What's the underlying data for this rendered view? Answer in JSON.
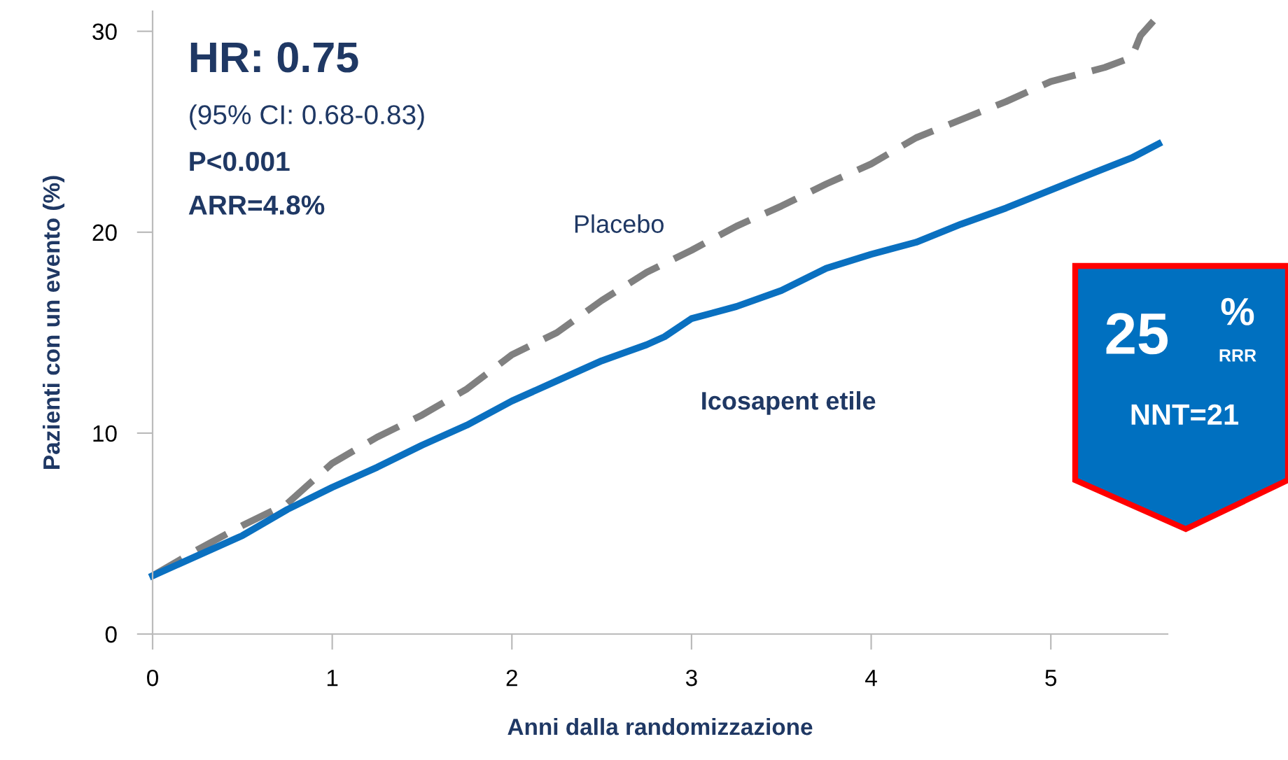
{
  "chart_data": {
    "type": "line",
    "xlabel": "Anni dalla randomizzazione",
    "ylabel": "Pazienti con un evento (%)",
    "xlim": [
      0,
      5.65
    ],
    "ylim": [
      0,
      31
    ],
    "xticks": [
      0,
      1,
      2,
      3,
      4,
      5
    ],
    "yticks": [
      0,
      10,
      20,
      30
    ],
    "grid": false,
    "legend": false,
    "series": [
      {
        "name": "Placebo",
        "color": "#808080",
        "line_style": "dashed",
        "x": [
          0,
          0.25,
          0.5,
          0.75,
          1,
          1.25,
          1.5,
          1.75,
          2,
          2.25,
          2.5,
          2.75,
          3,
          3.25,
          3.5,
          3.75,
          4,
          4.25,
          4.5,
          4.75,
          5,
          5.3,
          5.45,
          5.5,
          5.6
        ],
        "values": [
          2.9,
          4.2,
          5.4,
          6.5,
          8.5,
          9.8,
          10.9,
          12.2,
          13.9,
          15.0,
          16.6,
          18.0,
          19.1,
          20.3,
          21.3,
          22.4,
          23.4,
          24.7,
          25.6,
          26.5,
          27.5,
          28.2,
          28.7,
          29.8,
          30.8
        ]
      },
      {
        "name": "Icosapent etile",
        "color": "#0a70c0",
        "line_style": "solid",
        "x": [
          0,
          0.25,
          0.5,
          0.75,
          1,
          1.25,
          1.5,
          1.75,
          2,
          2.25,
          2.5,
          2.75,
          2.85,
          3,
          3.25,
          3.5,
          3.75,
          4,
          4.25,
          4.5,
          4.75,
          5,
          5.25,
          5.45,
          5.6
        ],
        "values": [
          2.9,
          3.9,
          4.9,
          6.2,
          7.3,
          8.3,
          9.4,
          10.4,
          11.6,
          12.6,
          13.6,
          14.4,
          14.8,
          15.7,
          16.3,
          17.1,
          18.2,
          18.9,
          19.5,
          20.4,
          21.2,
          22.1,
          23.0,
          23.7,
          24.4
        ]
      }
    ],
    "annotations": [
      "HR: 0.75",
      "(95% CI: 0.68-0.83)",
      "P<0.001",
      "ARR=4.8%",
      "25",
      "%",
      "RRR",
      "NNT=21"
    ]
  }
}
